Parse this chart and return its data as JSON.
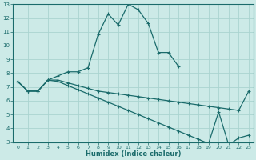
{
  "xlabel": "Humidex (Indice chaleur)",
  "xlim": [
    -0.5,
    23.5
  ],
  "ylim": [
    3,
    13
  ],
  "xticks": [
    0,
    1,
    2,
    3,
    4,
    5,
    6,
    7,
    8,
    9,
    10,
    11,
    12,
    13,
    14,
    15,
    16,
    17,
    18,
    19,
    20,
    21,
    22,
    23
  ],
  "yticks": [
    3,
    4,
    5,
    6,
    7,
    8,
    9,
    10,
    11,
    12,
    13
  ],
  "bg_color": "#cceae7",
  "grid_color": "#aad4d0",
  "line_color": "#1a6b6b",
  "curves": [
    {
      "x": [
        0,
        1,
        2,
        3,
        4,
        5,
        6,
        7,
        8,
        9,
        10,
        11,
        12,
        13,
        14,
        15,
        16,
        17,
        18,
        19,
        20
      ],
      "y": [
        7.4,
        6.7,
        6.7,
        7.5,
        7.8,
        8.1,
        8.1,
        8.4,
        10.8,
        12.3,
        11.5,
        13.0,
        12.6,
        11.6,
        9.5,
        9.5,
        8.5,
        null,
        null,
        null,
        null
      ]
    },
    {
      "x": [
        0,
        1,
        2,
        3,
        4,
        5,
        6,
        7,
        8,
        9,
        10,
        11,
        12,
        13,
        14,
        15,
        16,
        17,
        18,
        19,
        20,
        21,
        22,
        23
      ],
      "y": [
        7.4,
        6.7,
        6.7,
        7.5,
        7.5,
        7.3,
        7.1,
        6.9,
        6.7,
        6.6,
        6.5,
        6.4,
        6.3,
        6.2,
        6.1,
        6.0,
        5.9,
        5.8,
        5.7,
        5.6,
        5.5,
        5.4,
        5.3,
        6.7
      ]
    },
    {
      "x": [
        0,
        1,
        2,
        3,
        4,
        5,
        6,
        7,
        8,
        9,
        10,
        11,
        12,
        13,
        14,
        15,
        16,
        17,
        18,
        19,
        20,
        21,
        22,
        23
      ],
      "y": [
        7.4,
        6.7,
        6.7,
        7.5,
        7.4,
        7.1,
        6.8,
        6.5,
        6.2,
        5.9,
        5.6,
        5.3,
        5.0,
        4.7,
        4.4,
        4.1,
        3.8,
        3.5,
        3.2,
        2.9,
        5.2,
        2.8,
        3.3,
        3.5
      ]
    }
  ]
}
